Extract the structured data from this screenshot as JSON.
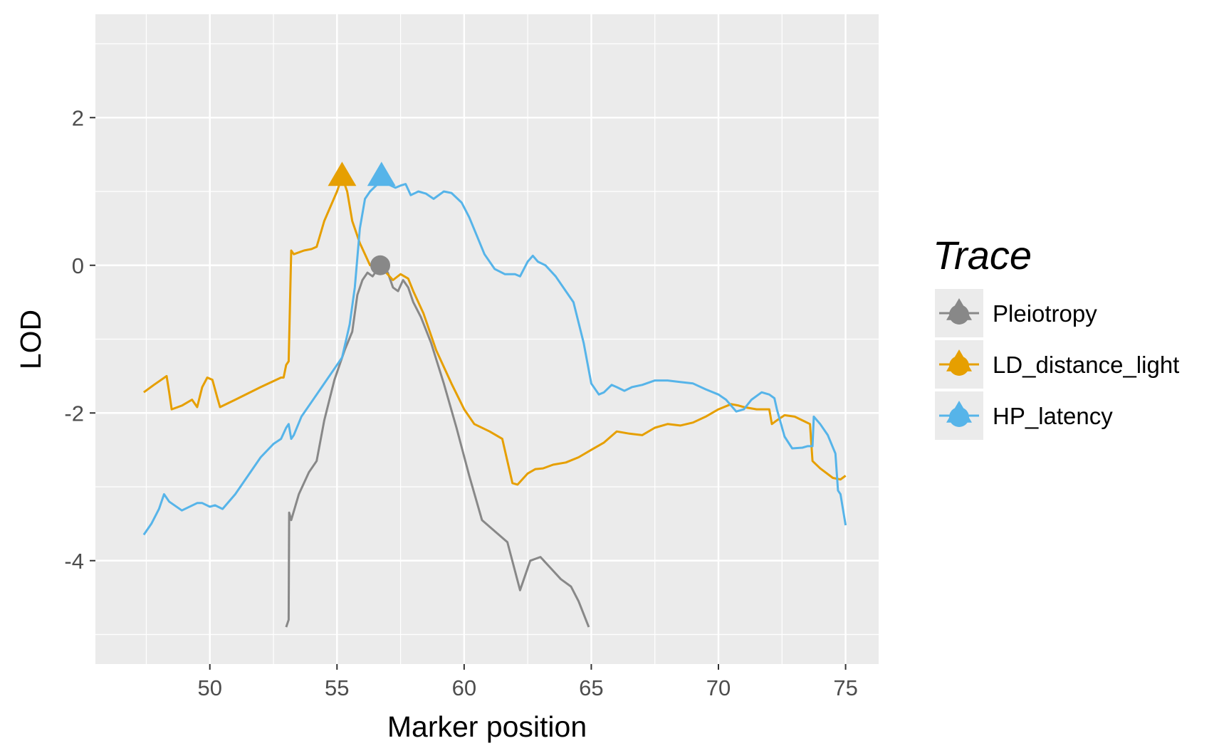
{
  "chart_data": {
    "type": "line",
    "title": "",
    "xlabel": "Marker position",
    "ylabel": "LOD",
    "xlim": [
      45.5,
      76.3
    ],
    "ylim": [
      -5.4,
      3.4
    ],
    "x_ticks": [
      50,
      55,
      60,
      65,
      70,
      75
    ],
    "y_ticks": [
      -4,
      -2,
      0,
      2
    ],
    "x_tick_labels": [
      "50",
      "55",
      "60",
      "65",
      "70",
      "75"
    ],
    "y_tick_labels": [
      "-4",
      "-2",
      "0",
      "2"
    ],
    "grid": true,
    "legend": {
      "title": "Trace",
      "position": "right",
      "entries": [
        "Pleiotropy",
        "LD_distance_light",
        "HP_latency"
      ]
    },
    "series": [
      {
        "name": "Pleiotropy",
        "color": "#888888",
        "marker": {
          "x": 56.7,
          "y": 0.0,
          "shape": "circle"
        },
        "points": [
          [
            53.0,
            -4.9
          ],
          [
            53.1,
            -4.8
          ],
          [
            53.12,
            -3.35
          ],
          [
            53.2,
            -3.45
          ],
          [
            53.5,
            -3.1
          ],
          [
            53.9,
            -2.8
          ],
          [
            54.2,
            -2.65
          ],
          [
            54.5,
            -2.1
          ],
          [
            54.9,
            -1.55
          ],
          [
            55.3,
            -1.15
          ],
          [
            55.6,
            -0.9
          ],
          [
            55.8,
            -0.4
          ],
          [
            56.0,
            -0.2
          ],
          [
            56.2,
            -0.1
          ],
          [
            56.4,
            -0.15
          ],
          [
            56.6,
            -0.05
          ],
          [
            56.8,
            0.0
          ],
          [
            57.0,
            -0.1
          ],
          [
            57.2,
            -0.3
          ],
          [
            57.4,
            -0.35
          ],
          [
            57.6,
            -0.2
          ],
          [
            57.8,
            -0.3
          ],
          [
            58.0,
            -0.5
          ],
          [
            58.3,
            -0.7
          ],
          [
            58.7,
            -1.05
          ],
          [
            59.2,
            -1.6
          ],
          [
            59.7,
            -2.2
          ],
          [
            60.2,
            -2.85
          ],
          [
            60.7,
            -3.45
          ],
          [
            61.2,
            -3.6
          ],
          [
            61.7,
            -3.75
          ],
          [
            62.2,
            -4.4
          ],
          [
            62.6,
            -4.0
          ],
          [
            63.0,
            -3.95
          ],
          [
            63.4,
            -4.1
          ],
          [
            63.8,
            -4.25
          ],
          [
            64.2,
            -4.35
          ],
          [
            64.5,
            -4.55
          ],
          [
            64.9,
            -4.9
          ]
        ]
      },
      {
        "name": "LD_distance_light",
        "color": "#E69F00",
        "marker": {
          "x": 55.2,
          "y": 1.2,
          "shape": "triangle"
        },
        "points": [
          [
            47.4,
            -1.72
          ],
          [
            47.8,
            -1.62
          ],
          [
            48.3,
            -1.5
          ],
          [
            48.4,
            -1.72
          ],
          [
            48.5,
            -1.95
          ],
          [
            48.9,
            -1.9
          ],
          [
            49.3,
            -1.82
          ],
          [
            49.5,
            -1.92
          ],
          [
            49.7,
            -1.65
          ],
          [
            49.9,
            -1.52
          ],
          [
            50.1,
            -1.55
          ],
          [
            50.3,
            -1.8
          ],
          [
            50.4,
            -1.92
          ],
          [
            51.0,
            -1.82
          ],
          [
            52.0,
            -1.65
          ],
          [
            52.8,
            -1.52
          ],
          [
            52.9,
            -1.52
          ],
          [
            53.0,
            -1.35
          ],
          [
            53.1,
            -1.3
          ],
          [
            53.2,
            0.2
          ],
          [
            53.3,
            0.15
          ],
          [
            53.7,
            0.2
          ],
          [
            54.0,
            0.22
          ],
          [
            54.2,
            0.25
          ],
          [
            54.5,
            0.6
          ],
          [
            55.0,
            1.0
          ],
          [
            55.2,
            1.2
          ],
          [
            55.4,
            1.0
          ],
          [
            55.6,
            0.6
          ],
          [
            55.9,
            0.3
          ],
          [
            56.1,
            0.15
          ],
          [
            56.3,
            0.0
          ],
          [
            56.6,
            0.0
          ],
          [
            56.8,
            -0.05
          ],
          [
            57.2,
            -0.2
          ],
          [
            57.5,
            -0.12
          ],
          [
            57.8,
            -0.18
          ],
          [
            58.0,
            -0.35
          ],
          [
            58.4,
            -0.65
          ],
          [
            58.9,
            -1.15
          ],
          [
            59.5,
            -1.6
          ],
          [
            60.0,
            -1.95
          ],
          [
            60.4,
            -2.15
          ],
          [
            61.0,
            -2.25
          ],
          [
            61.5,
            -2.35
          ],
          [
            61.9,
            -2.95
          ],
          [
            62.1,
            -2.97
          ],
          [
            62.5,
            -2.82
          ],
          [
            62.8,
            -2.76
          ],
          [
            63.1,
            -2.75
          ],
          [
            63.5,
            -2.7
          ],
          [
            64.0,
            -2.67
          ],
          [
            64.5,
            -2.6
          ],
          [
            65.0,
            -2.5
          ],
          [
            65.5,
            -2.4
          ],
          [
            66.0,
            -2.25
          ],
          [
            66.5,
            -2.28
          ],
          [
            67.0,
            -2.3
          ],
          [
            67.5,
            -2.2
          ],
          [
            68.0,
            -2.15
          ],
          [
            68.5,
            -2.17
          ],
          [
            69.0,
            -2.13
          ],
          [
            69.5,
            -2.05
          ],
          [
            70.0,
            -1.95
          ],
          [
            70.5,
            -1.88
          ],
          [
            70.8,
            -1.9
          ],
          [
            71.0,
            -1.92
          ],
          [
            71.5,
            -1.95
          ],
          [
            72.0,
            -1.95
          ],
          [
            72.1,
            -2.15
          ],
          [
            72.3,
            -2.1
          ],
          [
            72.6,
            -2.03
          ],
          [
            73.0,
            -2.05
          ],
          [
            73.3,
            -2.1
          ],
          [
            73.6,
            -2.15
          ],
          [
            73.7,
            -2.65
          ],
          [
            74.0,
            -2.75
          ],
          [
            74.5,
            -2.88
          ],
          [
            74.8,
            -2.9
          ],
          [
            75.0,
            -2.85
          ]
        ]
      },
      {
        "name": "HP_latency",
        "color": "#56B4E9",
        "marker": {
          "x": 56.75,
          "y": 1.2,
          "shape": "triangle"
        },
        "points": [
          [
            47.4,
            -3.65
          ],
          [
            47.7,
            -3.5
          ],
          [
            48.0,
            -3.3
          ],
          [
            48.2,
            -3.1
          ],
          [
            48.4,
            -3.2
          ],
          [
            48.9,
            -3.32
          ],
          [
            49.5,
            -3.22
          ],
          [
            49.7,
            -3.22
          ],
          [
            50.0,
            -3.27
          ],
          [
            50.2,
            -3.25
          ],
          [
            50.5,
            -3.3
          ],
          [
            51.0,
            -3.1
          ],
          [
            51.5,
            -2.85
          ],
          [
            52.0,
            -2.6
          ],
          [
            52.5,
            -2.42
          ],
          [
            52.8,
            -2.35
          ],
          [
            53.0,
            -2.2
          ],
          [
            53.1,
            -2.15
          ],
          [
            53.2,
            -2.35
          ],
          [
            53.3,
            -2.3
          ],
          [
            53.6,
            -2.05
          ],
          [
            54.0,
            -1.85
          ],
          [
            54.4,
            -1.65
          ],
          [
            54.8,
            -1.45
          ],
          [
            55.2,
            -1.25
          ],
          [
            55.5,
            -0.8
          ],
          [
            55.7,
            -0.3
          ],
          [
            55.9,
            0.5
          ],
          [
            56.1,
            0.9
          ],
          [
            56.3,
            1.0
          ],
          [
            56.6,
            1.1
          ],
          [
            57.0,
            1.1
          ],
          [
            57.3,
            1.05
          ],
          [
            57.5,
            1.08
          ],
          [
            57.7,
            1.1
          ],
          [
            57.9,
            0.95
          ],
          [
            58.2,
            1.0
          ],
          [
            58.5,
            0.97
          ],
          [
            58.8,
            0.9
          ],
          [
            59.2,
            1.0
          ],
          [
            59.5,
            0.98
          ],
          [
            59.9,
            0.85
          ],
          [
            60.2,
            0.65
          ],
          [
            60.5,
            0.4
          ],
          [
            60.8,
            0.15
          ],
          [
            61.2,
            -0.05
          ],
          [
            61.6,
            -0.12
          ],
          [
            62.0,
            -0.12
          ],
          [
            62.2,
            -0.15
          ],
          [
            62.5,
            0.05
          ],
          [
            62.7,
            0.13
          ],
          [
            62.9,
            0.05
          ],
          [
            63.2,
            0.0
          ],
          [
            63.6,
            -0.15
          ],
          [
            64.0,
            -0.35
          ],
          [
            64.3,
            -0.5
          ],
          [
            64.7,
            -1.05
          ],
          [
            65.0,
            -1.6
          ],
          [
            65.3,
            -1.75
          ],
          [
            65.5,
            -1.72
          ],
          [
            65.8,
            -1.62
          ],
          [
            66.0,
            -1.65
          ],
          [
            66.3,
            -1.7
          ],
          [
            66.6,
            -1.65
          ],
          [
            67.0,
            -1.62
          ],
          [
            67.5,
            -1.56
          ],
          [
            68.0,
            -1.56
          ],
          [
            68.5,
            -1.58
          ],
          [
            69.0,
            -1.6
          ],
          [
            69.5,
            -1.68
          ],
          [
            70.0,
            -1.75
          ],
          [
            70.3,
            -1.82
          ],
          [
            70.7,
            -1.98
          ],
          [
            71.0,
            -1.95
          ],
          [
            71.3,
            -1.82
          ],
          [
            71.7,
            -1.72
          ],
          [
            72.0,
            -1.75
          ],
          [
            72.2,
            -1.8
          ],
          [
            72.3,
            -1.95
          ],
          [
            72.6,
            -2.32
          ],
          [
            72.9,
            -2.48
          ],
          [
            73.3,
            -2.47
          ],
          [
            73.5,
            -2.45
          ],
          [
            73.7,
            -2.45
          ],
          [
            73.75,
            -2.05
          ],
          [
            74.0,
            -2.15
          ],
          [
            74.3,
            -2.3
          ],
          [
            74.6,
            -2.55
          ],
          [
            74.7,
            -3.05
          ],
          [
            74.8,
            -3.1
          ],
          [
            75.0,
            -3.52
          ]
        ]
      }
    ]
  }
}
